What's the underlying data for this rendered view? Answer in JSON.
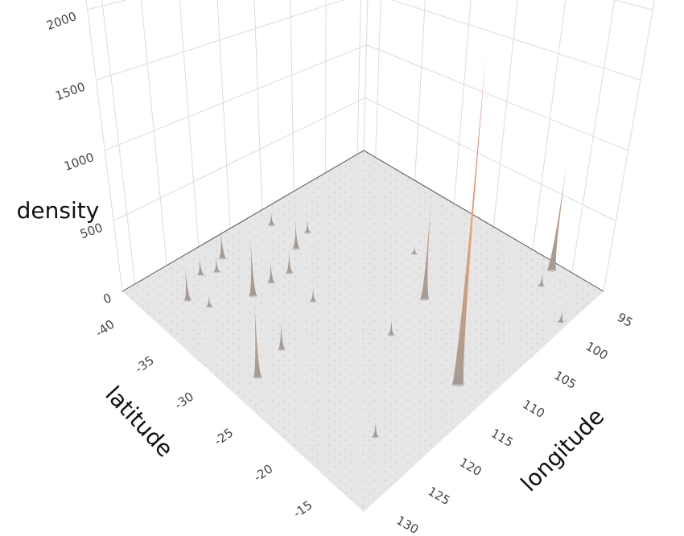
{
  "chart_data": {
    "type": "surface3d",
    "x_title": "longitude",
    "y_title": "latitude",
    "z_title": "density",
    "xlim": [
      94,
      132
    ],
    "xticks": [
      95,
      100,
      105,
      110,
      115,
      120,
      125,
      130
    ],
    "ylim": [
      -41.5,
      -11
    ],
    "yticks": [
      -40,
      -35,
      -30,
      -25,
      -20,
      -15
    ],
    "zlim": [
      0,
      2400
    ],
    "zticks": [
      0,
      500,
      1000,
      1500,
      2000
    ],
    "colorscale": [
      "#a39b95",
      "#f2a36e",
      "#b2182b"
    ],
    "floor_color": "#e6e6e6",
    "grid_color": "#dcdcdc",
    "peaks": {
      "x": [
        113.2,
        95.0,
        107.0,
        128.4,
        120.5,
        114.9,
        117.5,
        111.6,
        119.1,
        126.8,
        122.9,
        121.1,
        123.6,
        113.3,
        124.4,
        102.8,
        108.8,
        125.5,
        116.0,
        97.4,
        99.9,
        111.0
      ],
      "y": [
        -14.1,
        -16.8,
        -23.3,
        -27.3,
        -34.2,
        -34.1,
        -34.3,
        -35.9,
        -39.2,
        -37.4,
        -38.9,
        -38.3,
        -28.1,
        -22.5,
        -15.6,
        -28.0,
        -36.7,
        -35.7,
        -30.2,
        -16.2,
        -11.7,
        -39.5
      ],
      "z": [
        2150,
        805,
        700,
        510,
        425,
        170,
        165,
        225,
        230,
        240,
        135,
        110,
        195,
        110,
        100,
        60,
        95,
        80,
        100,
        95,
        90,
        115
      ]
    }
  }
}
